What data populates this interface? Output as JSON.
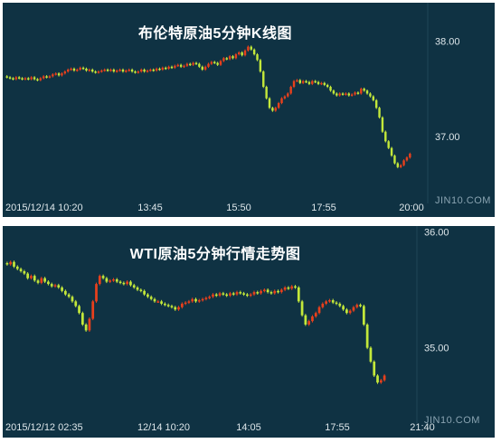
{
  "chart_data": [
    {
      "type": "candlestick",
      "title": "布伦特原油5分钟K线图",
      "xlabel": "",
      "ylabel": "",
      "x_ticks": [
        "2015/12/14 10:20",
        "13:45",
        "15:50",
        "17:55",
        "20:00"
      ],
      "y_ticks": [
        37.0,
        38.0
      ],
      "y_tick_labels": [
        "37.00",
        "38.00"
      ],
      "ylim": [
        36.3,
        38.4
      ],
      "grid": "none",
      "watermark": "JIN10.COM",
      "colors": {
        "background": "#0f3243",
        "up": "#e8401c",
        "down": "#c3e83a"
      },
      "series": [
        {
          "kind": "price",
          "values": [
            37.62,
            37.61,
            37.6,
            37.62,
            37.61,
            37.6,
            37.61,
            37.6,
            37.62,
            37.6,
            37.59,
            37.61,
            37.63,
            37.62,
            37.63,
            37.65,
            37.66,
            37.64,
            37.66,
            37.68,
            37.7,
            37.71,
            37.69,
            37.7,
            37.72,
            37.71,
            37.69,
            37.7,
            37.68,
            37.67,
            37.68,
            37.69,
            37.7,
            37.69,
            37.7,
            37.68,
            37.69,
            37.7,
            37.68,
            37.69,
            37.7,
            37.68,
            37.67,
            37.68,
            37.7,
            37.68,
            37.69,
            37.7,
            37.69,
            37.71,
            37.7,
            37.72,
            37.71,
            37.73,
            37.72,
            37.74,
            37.75,
            37.73,
            37.74,
            37.76,
            37.75,
            37.77,
            37.76,
            37.73,
            37.7,
            37.73,
            37.76,
            37.78,
            37.77,
            37.75,
            37.79,
            37.82,
            37.81,
            37.84,
            37.82,
            37.86,
            37.88,
            37.85,
            37.9,
            37.94,
            37.91,
            37.86,
            37.8,
            37.68,
            37.52,
            37.4,
            37.3,
            37.27,
            37.3,
            37.35,
            37.4,
            37.42,
            37.45,
            37.52,
            37.58,
            37.59,
            37.56,
            37.58,
            37.57,
            37.55,
            37.58,
            37.57,
            37.55,
            37.56,
            37.54,
            37.52,
            37.48,
            37.45,
            37.43,
            37.45,
            37.44,
            37.45,
            37.43,
            37.44,
            37.46,
            37.45,
            37.5,
            37.48,
            37.45,
            37.42,
            37.38,
            37.3,
            37.2,
            37.05,
            36.95,
            36.88,
            36.8,
            36.72,
            36.68,
            36.7,
            36.75,
            36.78,
            36.82
          ]
        }
      ]
    },
    {
      "type": "candlestick",
      "title": "WTI原油5分钟行情走势图",
      "xlabel": "",
      "ylabel": "",
      "x_ticks": [
        "2015/12/12 02:35",
        "12/14 10:20",
        "14:05",
        "17:55",
        "21:40"
      ],
      "y_ticks": [
        35.0,
        36.0
      ],
      "y_tick_labels": [
        "35.00",
        "36.00"
      ],
      "ylim": [
        34.35,
        36.05
      ],
      "grid": "none",
      "watermark": "JIN10.COM",
      "colors": {
        "background": "#0f3243",
        "up": "#e8401c",
        "down": "#c3e83a"
      },
      "series": [
        {
          "kind": "price",
          "values": [
            35.72,
            35.74,
            35.7,
            35.68,
            35.66,
            35.64,
            35.6,
            35.62,
            35.58,
            35.56,
            35.6,
            35.57,
            35.55,
            35.53,
            35.54,
            35.52,
            35.49,
            35.46,
            35.44,
            35.4,
            35.36,
            35.3,
            35.2,
            35.15,
            35.25,
            35.4,
            35.55,
            35.62,
            35.6,
            35.57,
            35.58,
            35.59,
            35.57,
            35.56,
            35.55,
            35.57,
            35.54,
            35.52,
            35.5,
            35.49,
            35.46,
            35.44,
            35.42,
            35.4,
            35.4,
            35.38,
            35.37,
            35.36,
            35.35,
            35.33,
            35.35,
            35.38,
            35.39,
            35.4,
            35.42,
            35.4,
            35.41,
            35.42,
            35.43,
            35.44,
            35.46,
            35.45,
            35.47,
            35.46,
            35.45,
            35.47,
            35.46,
            35.48,
            35.47,
            35.46,
            35.45,
            35.46,
            35.48,
            35.47,
            35.49,
            35.5,
            35.48,
            35.47,
            35.49,
            35.48,
            35.5,
            35.52,
            35.51,
            35.53,
            35.52,
            35.4,
            35.28,
            35.2,
            35.23,
            35.27,
            35.3,
            35.35,
            35.38,
            35.4,
            35.41,
            35.39,
            35.38,
            35.36,
            35.33,
            35.3,
            35.32,
            35.35,
            35.37,
            35.36,
            35.2,
            35.0,
            34.88,
            34.76,
            34.7,
            34.72,
            34.76
          ]
        }
      ]
    }
  ]
}
